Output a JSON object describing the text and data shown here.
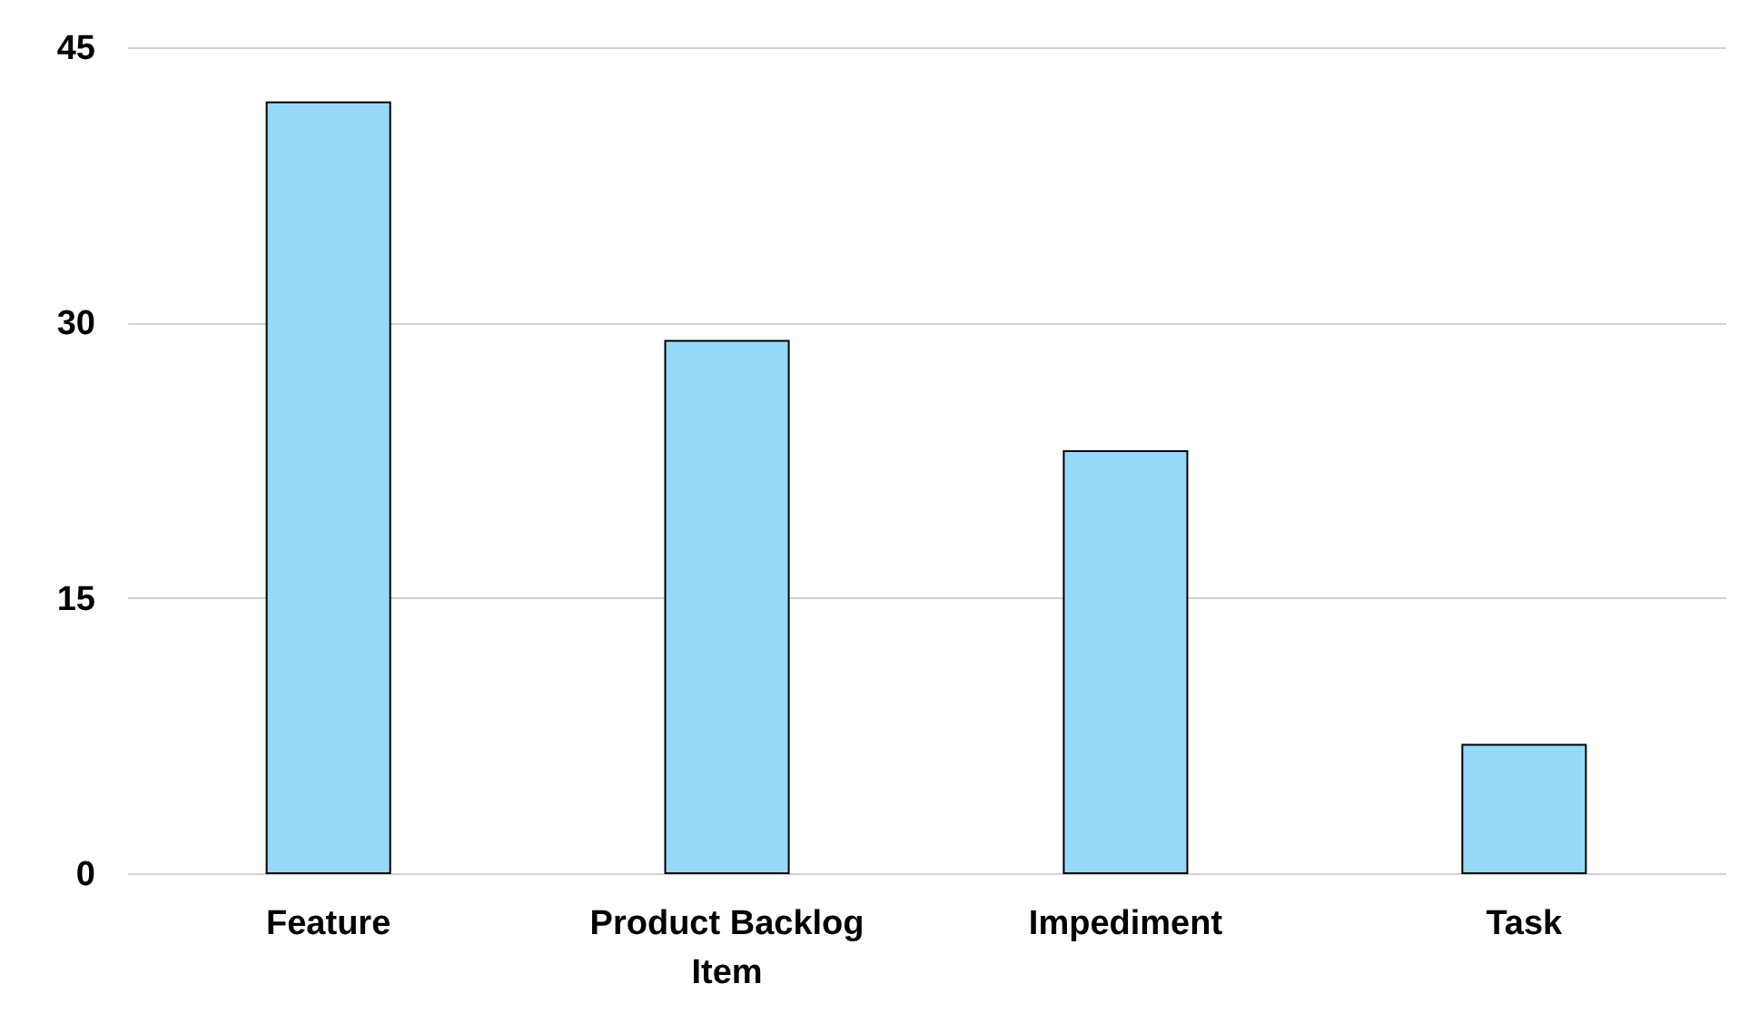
{
  "chart_data": {
    "type": "bar",
    "categories": [
      "Feature",
      "Product Backlog Item",
      "Impediment",
      "Task"
    ],
    "values": [
      42,
      29,
      23,
      7
    ],
    "color": "#97daf7",
    "ylim": [
      0,
      45
    ],
    "yticks": [
      0,
      15,
      30,
      45
    ],
    "grid": "y"
  }
}
